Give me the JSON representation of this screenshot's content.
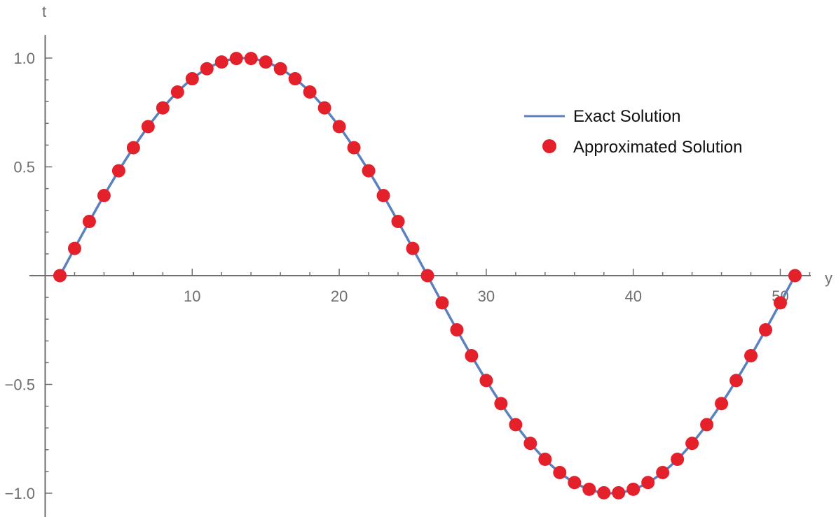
{
  "chart_data": {
    "type": "line",
    "xlabel": "y",
    "ylabel": "t",
    "xlim": [
      0,
      52
    ],
    "ylim": [
      -1.05,
      1.1
    ],
    "x_ticks_major": [
      10,
      20,
      30,
      40,
      50
    ],
    "x_ticks_minor_step": 2,
    "y_ticks_major": [
      -1.0,
      -0.5,
      0.5,
      1.0
    ],
    "y_tick_labels": {
      "-1.0": "−1.0",
      "-0.5": "−0.5",
      "0.5": "0.5",
      "1.0": "1.0"
    },
    "y_ticks_minor_step": 0.1,
    "grid": false,
    "legend": {
      "placement": "right",
      "entries": [
        "Exact Solution",
        "Approximated Solution"
      ]
    },
    "colors": {
      "exact": "#5b80be",
      "approx": "#e4212b",
      "axis": "#6f6f6f"
    },
    "series": [
      {
        "name": "Exact Solution",
        "kind": "curve",
        "function": "sin(2*pi*(x-1)/50)",
        "x_range": [
          1,
          51
        ]
      },
      {
        "name": "Approximated Solution",
        "kind": "points",
        "x": [
          1,
          2,
          3,
          4,
          5,
          6,
          7,
          8,
          9,
          10,
          11,
          12,
          13,
          14,
          15,
          16,
          17,
          18,
          19,
          20,
          21,
          22,
          23,
          24,
          25,
          26,
          27,
          28,
          29,
          30,
          31,
          32,
          33,
          34,
          35,
          36,
          37,
          38,
          39,
          40,
          41,
          42,
          43,
          44,
          45,
          46,
          47,
          48,
          49,
          50,
          51
        ],
        "y": [
          0.0,
          0.125,
          0.249,
          0.368,
          0.482,
          0.588,
          0.685,
          0.771,
          0.844,
          0.905,
          0.951,
          0.982,
          0.998,
          0.998,
          0.982,
          0.951,
          0.905,
          0.844,
          0.771,
          0.685,
          0.588,
          0.482,
          0.368,
          0.249,
          0.125,
          0.0,
          -0.125,
          -0.249,
          -0.368,
          -0.482,
          -0.588,
          -0.685,
          -0.771,
          -0.844,
          -0.905,
          -0.951,
          -0.982,
          -0.998,
          -0.998,
          -0.982,
          -0.951,
          -0.905,
          -0.844,
          -0.771,
          -0.685,
          -0.588,
          -0.482,
          -0.368,
          -0.249,
          -0.125,
          0.0
        ]
      }
    ]
  }
}
